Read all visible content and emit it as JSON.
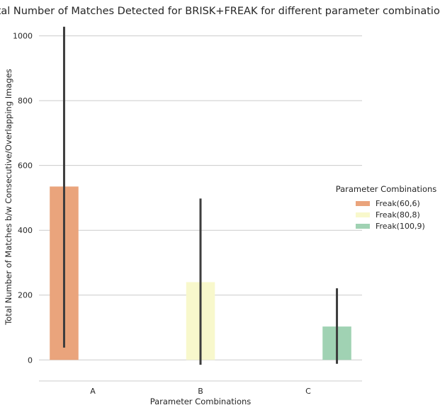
{
  "chart_data": {
    "type": "bar",
    "title": "Total Number of Matches Detected for BRISK+FREAK  for different parameter combinations",
    "xlabel": "Parameter Combinations",
    "ylabel": "Total Number of Matches b/w Consecutive/Overlapping Images",
    "categories": [
      "A",
      "B",
      "C"
    ],
    "ylim": [
      -65,
      1045
    ],
    "yticks": [
      0,
      200,
      400,
      600,
      800,
      1000
    ],
    "grid": true,
    "legend": {
      "title": "Parameter Combinations",
      "placement": "right"
    },
    "series": [
      {
        "name": "Freak(60,6)",
        "color": "#eaa47c",
        "values": [
          535,
          null,
          null
        ],
        "ci_low": [
          38,
          null,
          null
        ],
        "ci_high": [
          1028,
          null,
          null
        ]
      },
      {
        "name": "Freak(80,8)",
        "color": "#f8f8cc",
        "values": [
          null,
          240,
          null
        ],
        "ci_low": [
          null,
          -15,
          null
        ],
        "ci_high": [
          null,
          498,
          null
        ]
      },
      {
        "name": "Freak(100,9)",
        "color": "#a0d2b3",
        "values": [
          null,
          null,
          103
        ],
        "ci_low": [
          null,
          null,
          -12
        ],
        "ci_high": [
          null,
          null,
          221
        ]
      }
    ],
    "errorbar_color": "#3d3d3d"
  }
}
